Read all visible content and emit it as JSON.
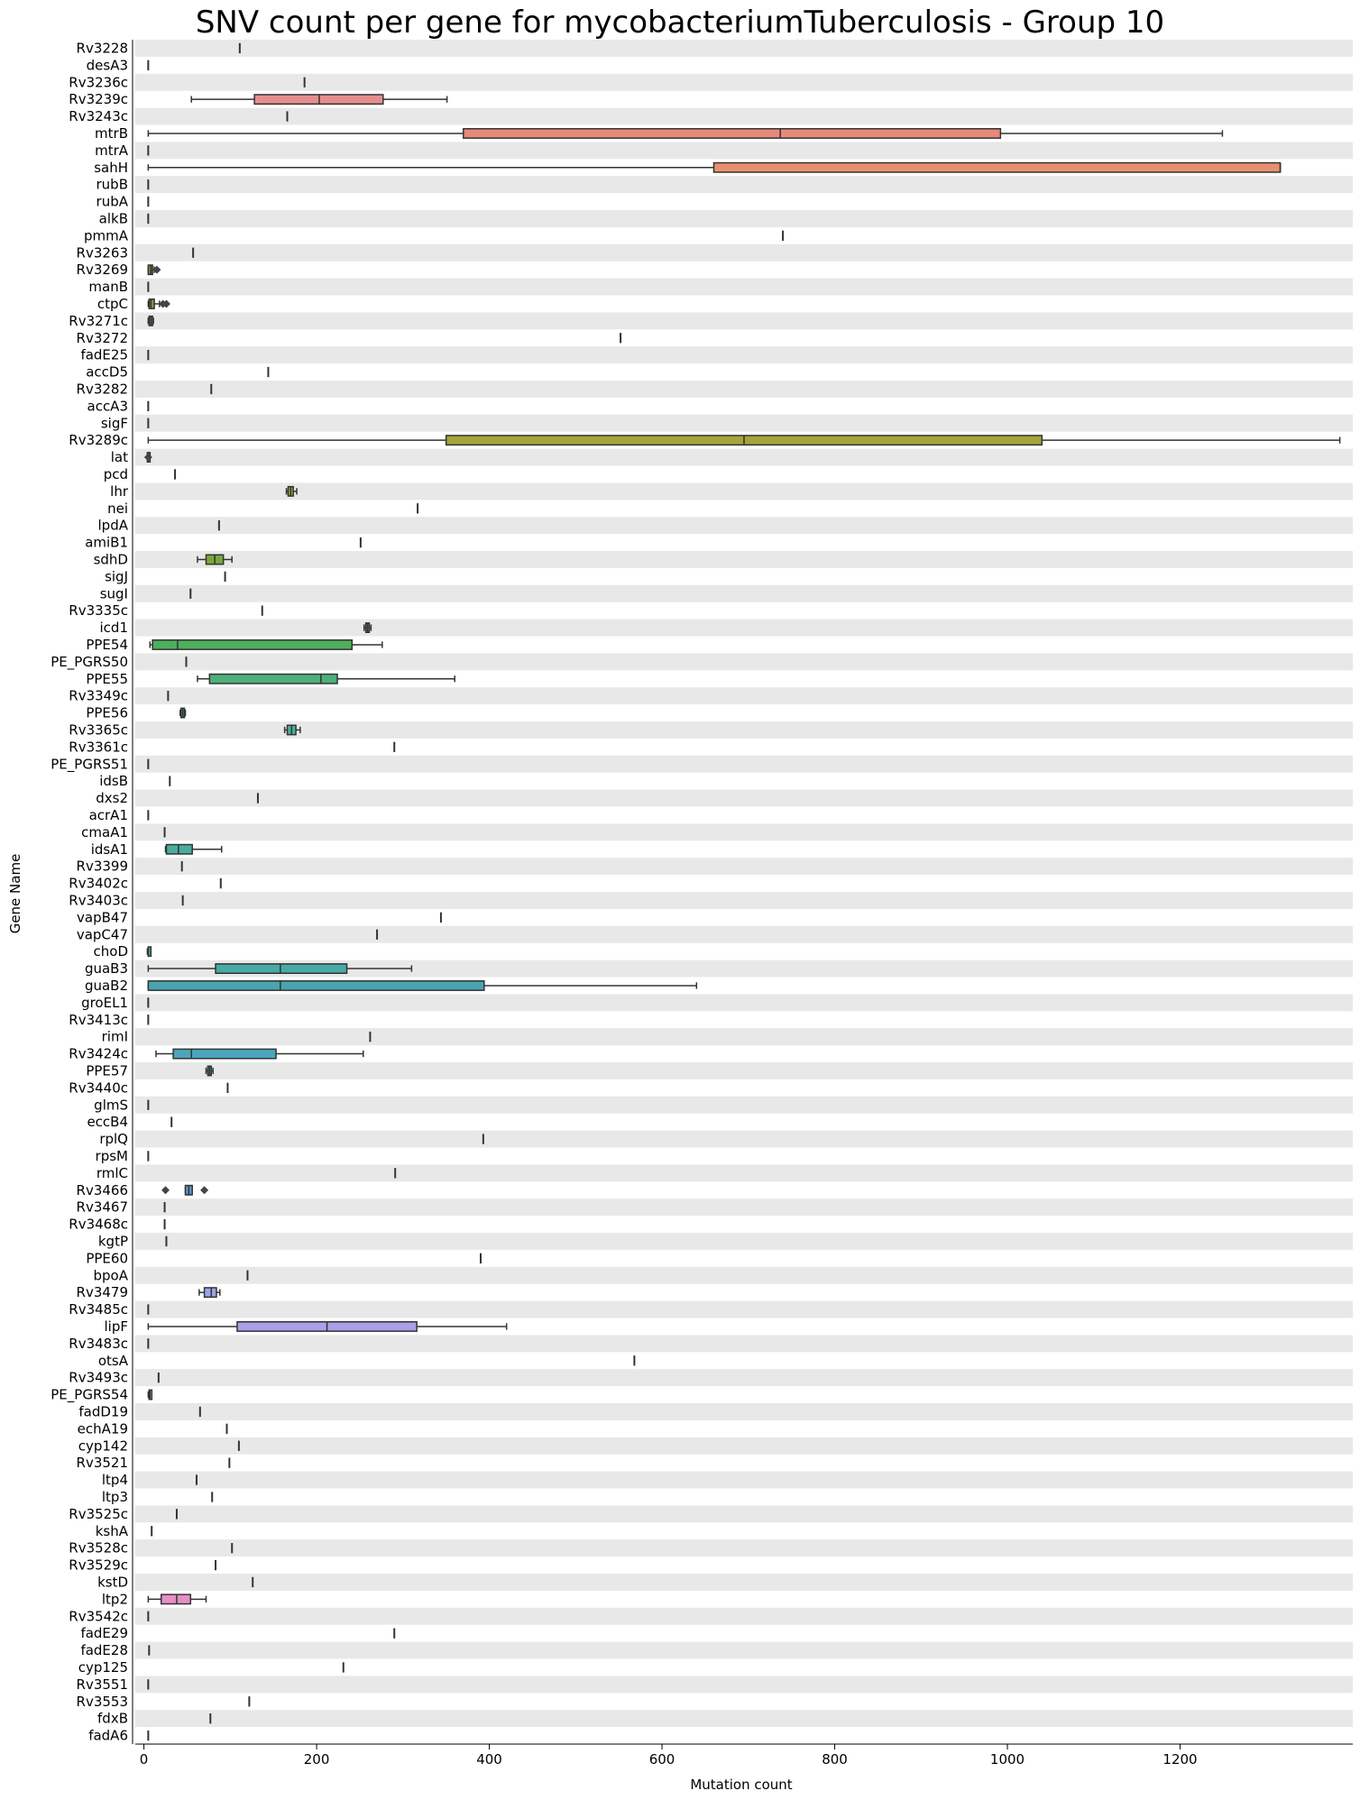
{
  "chart_data": {
    "type": "boxplot",
    "orientation": "horizontal",
    "title": "SNV count per gene for mycobacteriumTuberculosis - Group 10",
    "xlabel": "Mutation count",
    "ylabel": "Gene Name",
    "xlim": [
      -10,
      1400
    ],
    "xticks": [
      0,
      200,
      400,
      600,
      800,
      1000,
      1200
    ],
    "row_shading": "alternating light gray",
    "genes": [
      {
        "name": "Rv3228",
        "box": [
          111,
          111,
          111,
          111,
          111
        ]
      },
      {
        "name": "desA3",
        "box": [
          5,
          5,
          5,
          5,
          5
        ]
      },
      {
        "name": "Rv3236c",
        "box": [
          186,
          186,
          186,
          186,
          186
        ]
      },
      {
        "name": "Rv3239c",
        "box": [
          55,
          128,
          203,
          277,
          351
        ],
        "color": "#e88d8d"
      },
      {
        "name": "Rv3243c",
        "box": [
          166,
          166,
          166,
          166,
          166
        ]
      },
      {
        "name": "mtrB",
        "box": [
          5,
          370,
          737,
          992,
          1249
        ],
        "color": "#e8897a"
      },
      {
        "name": "mtrA",
        "box": [
          5,
          5,
          5,
          5,
          5
        ]
      },
      {
        "name": "sahH",
        "box": [
          5,
          660,
          1316,
          1316,
          1316
        ],
        "color": "#e8906e"
      },
      {
        "name": "rubB",
        "box": [
          5,
          5,
          5,
          5,
          5
        ]
      },
      {
        "name": "rubA",
        "box": [
          5,
          5,
          5,
          5,
          5
        ]
      },
      {
        "name": "alkB",
        "box": [
          5,
          5,
          5,
          5,
          5
        ]
      },
      {
        "name": "pmmA",
        "box": [
          740,
          740,
          740,
          740,
          740
        ]
      },
      {
        "name": "Rv3263",
        "box": [
          57,
          57,
          57,
          57,
          57
        ]
      },
      {
        "name": "Rv3269",
        "box": [
          5,
          5,
          8,
          10,
          12
        ],
        "outliers": [
          15
        ],
        "color": "#8f8f3a"
      },
      {
        "name": "manB",
        "box": [
          5,
          5,
          5,
          5,
          5
        ]
      },
      {
        "name": "ctpC",
        "box": [
          5,
          6,
          8,
          12,
          18
        ],
        "outliers": [
          22,
          26
        ],
        "color": "#8f8f3a"
      },
      {
        "name": "Rv3271c",
        "box": [
          5,
          6,
          8,
          10,
          11
        ],
        "color": "#8f8f3a"
      },
      {
        "name": "Rv3272",
        "box": [
          552,
          552,
          552,
          552,
          552
        ]
      },
      {
        "name": "fadE25",
        "box": [
          5,
          5,
          5,
          5,
          5
        ]
      },
      {
        "name": "accD5",
        "box": [
          144,
          144,
          144,
          144,
          144
        ]
      },
      {
        "name": "Rv3282",
        "box": [
          78,
          78,
          78,
          78,
          78
        ]
      },
      {
        "name": "accA3",
        "box": [
          5,
          5,
          5,
          5,
          5
        ]
      },
      {
        "name": "sigF",
        "box": [
          5,
          5,
          5,
          5,
          5
        ]
      },
      {
        "name": "Rv3289c",
        "box": [
          5,
          350,
          695,
          1040,
          1385
        ],
        "color": "#a6a43a"
      },
      {
        "name": "lat",
        "box": [
          4,
          4,
          5,
          6,
          6
        ],
        "outliers": [
          5
        ],
        "color": "#a6a43a"
      },
      {
        "name": "pcd",
        "box": [
          36,
          36,
          36,
          36,
          36
        ]
      },
      {
        "name": "lhr",
        "box": [
          165,
          167,
          170,
          173,
          177
        ],
        "color": "#9aa83a"
      },
      {
        "name": "nei",
        "box": [
          317,
          317,
          317,
          317,
          317
        ]
      },
      {
        "name": "lpdA",
        "box": [
          87,
          87,
          87,
          87,
          87
        ]
      },
      {
        "name": "amiB1",
        "box": [
          251,
          251,
          251,
          251,
          251
        ]
      },
      {
        "name": "sdhD",
        "box": [
          62,
          72,
          82,
          92,
          102
        ],
        "color": "#7aa83a"
      },
      {
        "name": "sigJ",
        "box": [
          94,
          94,
          94,
          94,
          94
        ]
      },
      {
        "name": "sugI",
        "box": [
          54,
          54,
          54,
          54,
          54
        ]
      },
      {
        "name": "Rv3335c",
        "box": [
          137,
          137,
          137,
          137,
          137
        ]
      },
      {
        "name": "icd1",
        "box": [
          255,
          257,
          259,
          261,
          263
        ],
        "color": "#5aa83e"
      },
      {
        "name": "PPE54",
        "box": [
          7,
          10,
          39,
          241,
          276
        ],
        "color": "#4eae5c"
      },
      {
        "name": "PE_PGRS50",
        "box": [
          49,
          49,
          49,
          49,
          49
        ]
      },
      {
        "name": "PPE55",
        "box": [
          62,
          76,
          205,
          224,
          360
        ],
        "color": "#4db07a"
      },
      {
        "name": "Rv3349c",
        "box": [
          28,
          28,
          28,
          28,
          28
        ]
      },
      {
        "name": "PPE56",
        "box": [
          42,
          43,
          45,
          47,
          48
        ],
        "color": "#4db07a"
      },
      {
        "name": "Rv3365c",
        "box": [
          163,
          166,
          171,
          176,
          181
        ],
        "color": "#4ab09a"
      },
      {
        "name": "Rv3361c",
        "box": [
          290,
          290,
          290,
          290,
          290
        ]
      },
      {
        "name": "PE_PGRS51",
        "box": [
          5,
          5,
          5,
          5,
          5
        ]
      },
      {
        "name": "idsB",
        "box": [
          30,
          30,
          30,
          30,
          30
        ]
      },
      {
        "name": "dxs2",
        "box": [
          132,
          132,
          132,
          132,
          132
        ]
      },
      {
        "name": "acrA1",
        "box": [
          5,
          5,
          5,
          5,
          5
        ]
      },
      {
        "name": "cmaA1",
        "box": [
          24,
          24,
          24,
          24,
          24
        ]
      },
      {
        "name": "idsA1",
        "box": [
          25,
          26,
          40,
          56,
          90
        ],
        "color": "#48ae9c"
      },
      {
        "name": "Rv3399",
        "box": [
          44,
          44,
          44,
          44,
          44
        ]
      },
      {
        "name": "Rv3402c",
        "box": [
          89,
          89,
          89,
          89,
          89
        ]
      },
      {
        "name": "Rv3403c",
        "box": [
          45,
          45,
          45,
          45,
          45
        ]
      },
      {
        "name": "vapB47",
        "box": [
          344,
          344,
          344,
          344,
          344
        ]
      },
      {
        "name": "vapC47",
        "box": [
          270,
          270,
          270,
          270,
          270
        ]
      },
      {
        "name": "choD",
        "box": [
          4,
          5,
          5,
          6,
          6
        ],
        "color": "#48ae9c"
      },
      {
        "name": "guaB3",
        "box": [
          5,
          83,
          158,
          235,
          310
        ],
        "color": "#48aaa6"
      },
      {
        "name": "guaB2",
        "box": [
          5,
          5,
          158,
          394,
          640
        ],
        "color": "#4aa4b0"
      },
      {
        "name": "groEL1",
        "box": [
          5,
          5,
          5,
          5,
          5
        ]
      },
      {
        "name": "Rv3413c",
        "box": [
          5,
          5,
          5,
          5,
          5
        ]
      },
      {
        "name": "rimI",
        "box": [
          262,
          262,
          262,
          262,
          262
        ]
      },
      {
        "name": "Rv3424c",
        "box": [
          14,
          34,
          55,
          153,
          254
        ],
        "color": "#4aa6bc"
      },
      {
        "name": "PPE57",
        "box": [
          72,
          74,
          76,
          78,
          80
        ],
        "color": "#4aa6bc"
      },
      {
        "name": "Rv3440c",
        "box": [
          97,
          97,
          97,
          97,
          97
        ]
      },
      {
        "name": "glmS",
        "box": [
          5,
          5,
          5,
          5,
          5
        ]
      },
      {
        "name": "eccB4",
        "box": [
          32,
          32,
          32,
          32,
          32
        ]
      },
      {
        "name": "rplQ",
        "box": [
          393,
          393,
          393,
          393,
          393
        ]
      },
      {
        "name": "rpsM",
        "box": [
          5,
          5,
          5,
          5,
          5
        ]
      },
      {
        "name": "rmlC",
        "box": [
          291,
          291,
          291,
          291,
          291
        ]
      },
      {
        "name": "Rv3466",
        "box": [
          48,
          48,
          52,
          56,
          56
        ],
        "outliers": [
          25,
          70
        ],
        "color": "#5a9ad0"
      },
      {
        "name": "Rv3467",
        "box": [
          24,
          24,
          24,
          24,
          24
        ]
      },
      {
        "name": "Rv3468c",
        "box": [
          24,
          24,
          24,
          24,
          24
        ]
      },
      {
        "name": "kgtP",
        "box": [
          26,
          26,
          26,
          26,
          26
        ]
      },
      {
        "name": "PPE60",
        "box": [
          390,
          390,
          390,
          390,
          390
        ]
      },
      {
        "name": "bpoA",
        "box": [
          120,
          120,
          120,
          120,
          120
        ]
      },
      {
        "name": "Rv3479",
        "box": [
          64,
          70,
          78,
          84,
          88
        ],
        "color": "#9aa4e6"
      },
      {
        "name": "Rv3485c",
        "box": [
          5,
          5,
          5,
          5,
          5
        ]
      },
      {
        "name": "lipF",
        "box": [
          5,
          108,
          212,
          316,
          420
        ],
        "color": "#a8a0e8"
      },
      {
        "name": "Rv3483c",
        "box": [
          5,
          5,
          5,
          5,
          5
        ]
      },
      {
        "name": "otsA",
        "box": [
          568,
          568,
          568,
          568,
          568
        ]
      },
      {
        "name": "Rv3493c",
        "box": [
          17,
          17,
          17,
          17,
          17
        ]
      },
      {
        "name": "PE_PGRS54",
        "box": [
          5,
          6,
          7,
          8,
          9
        ],
        "color": "#c4a0e0"
      },
      {
        "name": "fadD19",
        "box": [
          65,
          65,
          65,
          65,
          65
        ]
      },
      {
        "name": "echA19",
        "box": [
          96,
          96,
          96,
          96,
          96
        ]
      },
      {
        "name": "cyp142",
        "box": [
          110,
          110,
          110,
          110,
          110
        ]
      },
      {
        "name": "Rv3521",
        "box": [
          99,
          99,
          99,
          99,
          99
        ]
      },
      {
        "name": "ltp4",
        "box": [
          61,
          61,
          61,
          61,
          61
        ]
      },
      {
        "name": "ltp3",
        "box": [
          79,
          79,
          79,
          79,
          79
        ]
      },
      {
        "name": "Rv3525c",
        "box": [
          38,
          38,
          38,
          38,
          38
        ]
      },
      {
        "name": "kshA",
        "box": [
          9,
          9,
          9,
          9,
          9
        ]
      },
      {
        "name": "Rv3528c",
        "box": [
          102,
          102,
          102,
          102,
          102
        ]
      },
      {
        "name": "Rv3529c",
        "box": [
          83,
          83,
          83,
          83,
          83
        ]
      },
      {
        "name": "kstD",
        "box": [
          126,
          126,
          126,
          126,
          126
        ]
      },
      {
        "name": "ltp2",
        "box": [
          5,
          20,
          38,
          54,
          72
        ],
        "color": "#e88ec8"
      },
      {
        "name": "Rv3542c",
        "box": [
          5,
          5,
          5,
          5,
          5
        ]
      },
      {
        "name": "fadE29",
        "box": [
          290,
          290,
          290,
          290,
          290
        ]
      },
      {
        "name": "fadE28",
        "box": [
          6,
          6,
          6,
          6,
          6
        ]
      },
      {
        "name": "cyp125",
        "box": [
          231,
          231,
          231,
          231,
          231
        ]
      },
      {
        "name": "Rv3551",
        "box": [
          5,
          5,
          5,
          5,
          5
        ]
      },
      {
        "name": "Rv3553",
        "box": [
          122,
          122,
          122,
          122,
          122
        ]
      },
      {
        "name": "fdxB",
        "box": [
          77,
          77,
          77,
          77,
          77
        ]
      },
      {
        "name": "fadA6",
        "box": [
          5,
          5,
          5,
          5,
          5
        ]
      }
    ]
  }
}
